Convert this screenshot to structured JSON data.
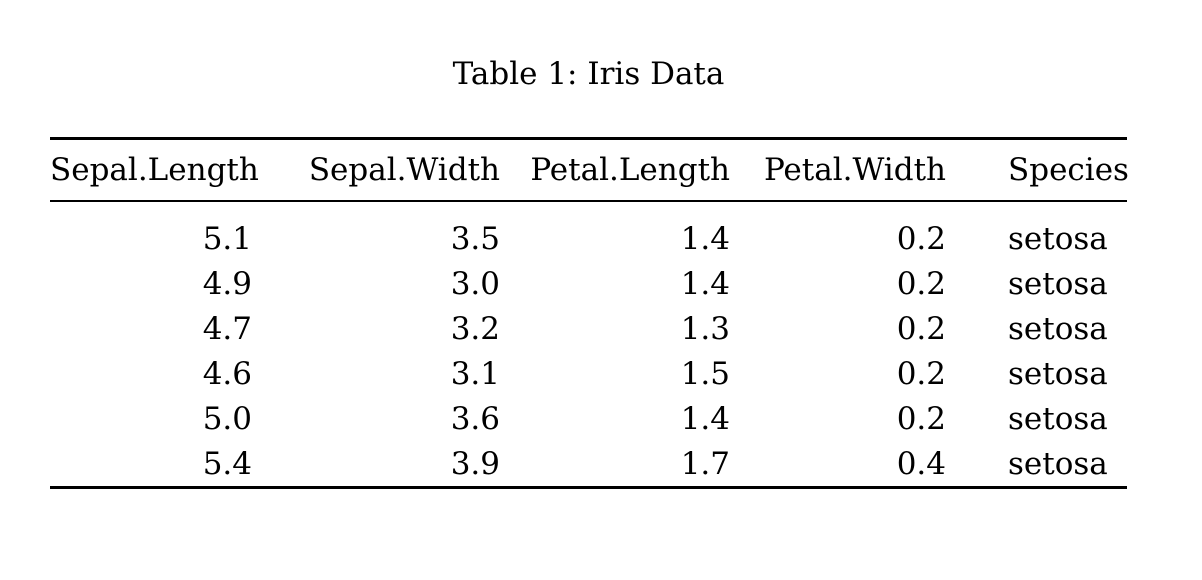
{
  "caption": "Table 1: Iris Data",
  "table": {
    "headers": [
      "Sepal.Length",
      "Sepal.Width",
      "Petal.Length",
      "Petal.Width",
      "Species"
    ],
    "rows": [
      [
        "5.1",
        "3.5",
        "1.4",
        "0.2",
        "setosa"
      ],
      [
        "4.9",
        "3.0",
        "1.4",
        "0.2",
        "setosa"
      ],
      [
        "4.7",
        "3.2",
        "1.3",
        "0.2",
        "setosa"
      ],
      [
        "4.6",
        "3.1",
        "1.5",
        "0.2",
        "setosa"
      ],
      [
        "5.0",
        "3.6",
        "1.4",
        "0.2",
        "setosa"
      ],
      [
        "5.4",
        "3.9",
        "1.7",
        "0.4",
        "setosa"
      ]
    ]
  },
  "colors": {
    "text": "#000000",
    "background": "#ffffff",
    "rule": "#000000"
  }
}
